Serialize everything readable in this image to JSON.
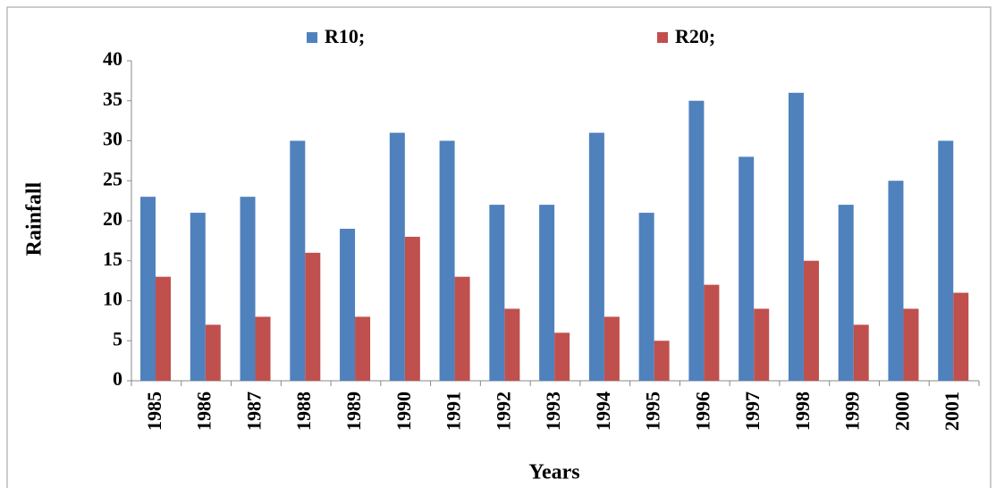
{
  "chart_data": {
    "type": "bar",
    "x_label": "Years",
    "y_label": "Rainfall",
    "categories": [
      "1985",
      "1986",
      "1987",
      "1988",
      "1989",
      "1990",
      "1991",
      "1992",
      "1993",
      "1994",
      "1995",
      "1996",
      "1997",
      "1998",
      "1999",
      "2000",
      "2001"
    ],
    "series": [
      {
        "name": "R10;",
        "color": "#4f81bd",
        "values": [
          23,
          21,
          23,
          30,
          19,
          31,
          30,
          22,
          22,
          31,
          21,
          35,
          28,
          36,
          22,
          25,
          30
        ]
      },
      {
        "name": "R20;",
        "color": "#c0504d",
        "values": [
          13,
          7,
          8,
          16,
          8,
          18,
          13,
          9,
          6,
          8,
          5,
          12,
          9,
          15,
          7,
          9,
          11
        ]
      }
    ],
    "ylim": [
      0,
      40
    ],
    "yticks": [
      0,
      5,
      10,
      15,
      20,
      25,
      30,
      35,
      40
    ],
    "grid": false,
    "legend": "top"
  }
}
